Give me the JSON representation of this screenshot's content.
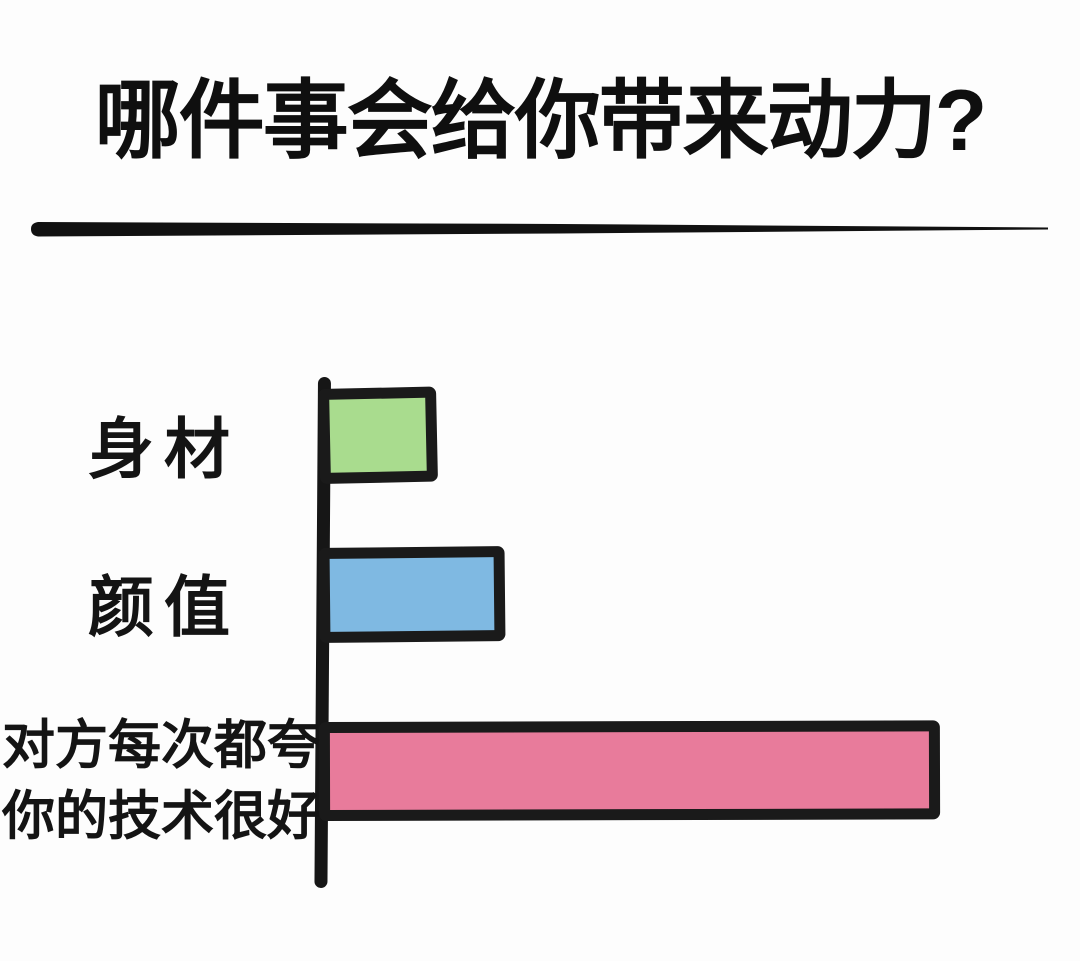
{
  "title": "哪件事会给你带来动力?",
  "chart_data": {
    "type": "bar",
    "orientation": "horizontal",
    "title": "哪件事会给你带来动力?",
    "categories": [
      "身材",
      "颜值",
      "对方每次都夸你的技术很好"
    ],
    "category_lines": [
      [
        "身材"
      ],
      [
        "颜值"
      ],
      [
        "对方每次都夸",
        "你的技术很好"
      ]
    ],
    "values": [
      19,
      30,
      100
    ],
    "xlim": [
      0,
      100
    ],
    "xlabel": "",
    "ylabel": "",
    "grid": false,
    "legend": false,
    "bar_colors": [
      "#a9dc8e",
      "#7fb9e2",
      "#e87b9b"
    ],
    "bar_outline_color": "#1a1a1a",
    "axis_color": "#161616",
    "style": "hand-drawn meme bar chart, no numeric tick labels"
  },
  "colors": {
    "background": "#fdfdfd",
    "text": "#0f0f0f",
    "divider": "#111111"
  }
}
